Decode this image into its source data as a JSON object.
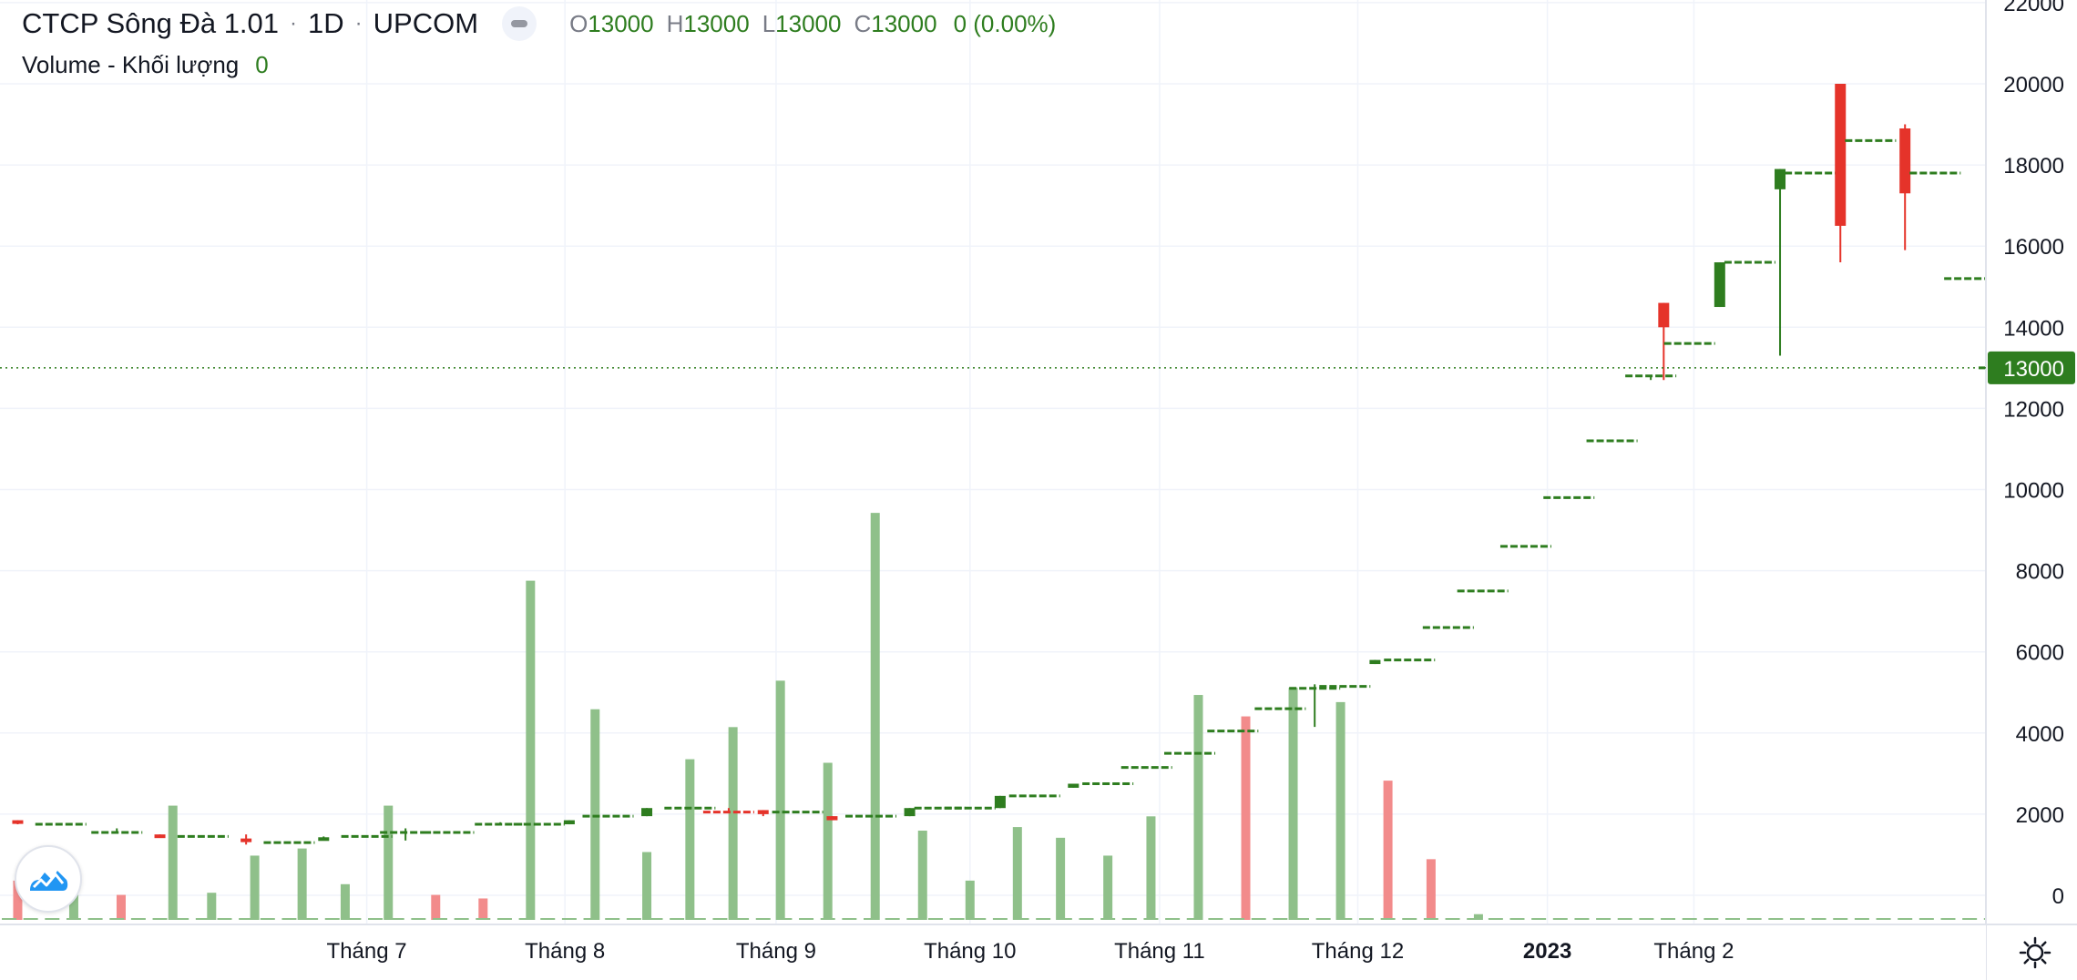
{
  "legend": {
    "symbol": "CTCP Sông Đà 1.01",
    "interval": "1D",
    "exchange": "UPCOM",
    "o_key": "O",
    "o_val": "13000",
    "h_key": "H",
    "h_val": "13000",
    "l_key": "L",
    "l_val": "13000",
    "c_key": "C",
    "c_val": "13000",
    "change": "0 (0.00%)"
  },
  "volume_legend": {
    "label": "Volume - Khối lượng",
    "value": "0"
  },
  "last_price_label": "13000",
  "icons": {
    "logo": "tradingview-logo-icon",
    "settings": "gear-icon",
    "collapse": "collapse-legend-icon"
  },
  "colors": {
    "up": "#2e7d1f",
    "down": "#e5332a",
    "volume_up": "#8fc08a",
    "volume_down": "#f28b8b",
    "grid": "#f0f3fa",
    "axis": "#e0e3eb"
  },
  "chart_data": {
    "type": "candlestick",
    "y_ticks": [
      "0",
      "2000",
      "4000",
      "6000",
      "8000",
      "10000",
      "12000",
      "14000",
      "16000",
      "18000",
      "20000",
      "22000"
    ],
    "x_ticks": [
      {
        "label": "Tháng 7",
        "bold": false,
        "idx": 8.3
      },
      {
        "label": "Tháng 8",
        "bold": false,
        "idx": 12.9
      },
      {
        "label": "Tháng 9",
        "bold": false,
        "idx": 17.8
      },
      {
        "label": "Tháng 10",
        "bold": false,
        "idx": 22.3
      },
      {
        "label": "Tháng 11",
        "bold": false,
        "idx": 26.7
      },
      {
        "label": "Tháng 12",
        "bold": false,
        "idx": 31.3
      },
      {
        "label": "2023",
        "bold": true,
        "idx": 35.7
      },
      {
        "label": "Tháng 2",
        "bold": false,
        "idx": 39.1
      }
    ],
    "ylim": [
      0,
      22000
    ],
    "last_price": 13000,
    "candles": [
      {
        "o": 1850,
        "h": 1850,
        "l": 1750,
        "c": 1780,
        "flat": false
      },
      {
        "o": 1750,
        "h": 1750,
        "l": 1750,
        "c": 1750,
        "flat": true
      },
      {
        "o": 1550,
        "h": 1650,
        "l": 1550,
        "c": 1550,
        "flat": true
      },
      {
        "o": 1500,
        "h": 1500,
        "l": 1450,
        "c": 1460,
        "flat": false
      },
      {
        "o": 1450,
        "h": 1450,
        "l": 1450,
        "c": 1450,
        "flat": true
      },
      {
        "o": 1400,
        "h": 1500,
        "l": 1250,
        "c": 1320,
        "flat": false
      },
      {
        "o": 1300,
        "h": 1300,
        "l": 1300,
        "c": 1300,
        "flat": true
      },
      {
        "o": 1350,
        "h": 1450,
        "l": 1350,
        "c": 1430,
        "flat": false
      },
      {
        "o": 1450,
        "h": 1450,
        "l": 1450,
        "c": 1450,
        "flat": true
      },
      {
        "o": 1500,
        "h": 1650,
        "l": 1350,
        "c": 1550,
        "flat": true
      },
      {
        "o": 1550,
        "h": 1550,
        "l": 1550,
        "c": 1550,
        "flat": true
      },
      {
        "o": 1750,
        "h": 1800,
        "l": 1750,
        "c": 1750,
        "flat": true
      },
      {
        "o": 1750,
        "h": 1750,
        "l": 1750,
        "c": 1750,
        "flat": true
      },
      {
        "o": 1750,
        "h": 1850,
        "l": 1750,
        "c": 1850,
        "flat": false
      },
      {
        "o": 1950,
        "h": 1950,
        "l": 1950,
        "c": 1950,
        "flat": true
      },
      {
        "o": 1950,
        "h": 2150,
        "l": 1950,
        "c": 2150,
        "flat": false
      },
      {
        "o": 2150,
        "h": 2150,
        "l": 2150,
        "c": 2150,
        "flat": true
      },
      {
        "o": 2150,
        "h": 2150,
        "l": 2050,
        "c": 2050,
        "flat": true
      },
      {
        "o": 2100,
        "h": 2100,
        "l": 1950,
        "c": 2000,
        "flat": false
      },
      {
        "o": 2050,
        "h": 2050,
        "l": 2050,
        "c": 2050,
        "flat": true
      },
      {
        "o": 1950,
        "h": 1950,
        "l": 1850,
        "c": 1850,
        "flat": false
      },
      {
        "o": 1950,
        "h": 1950,
        "l": 1950,
        "c": 1950,
        "flat": true
      },
      {
        "o": 1950,
        "h": 2150,
        "l": 1950,
        "c": 2150,
        "flat": false
      },
      {
        "o": 2150,
        "h": 2150,
        "l": 2150,
        "c": 2150,
        "flat": true
      },
      {
        "o": 2150,
        "h": 2150,
        "l": 2150,
        "c": 2150,
        "flat": true
      },
      {
        "o": 2150,
        "h": 2450,
        "l": 2150,
        "c": 2450,
        "flat": false
      },
      {
        "o": 2450,
        "h": 2450,
        "l": 2450,
        "c": 2450,
        "flat": true
      },
      {
        "o": 2650,
        "h": 2750,
        "l": 2650,
        "c": 2750,
        "flat": false
      },
      {
        "o": 2750,
        "h": 2750,
        "l": 2750,
        "c": 2750,
        "flat": true
      },
      {
        "o": 3150,
        "h": 3150,
        "l": 3150,
        "c": 3150,
        "flat": true
      },
      {
        "o": 3500,
        "h": 3500,
        "l": 3500,
        "c": 3500,
        "flat": true
      },
      {
        "o": 4050,
        "h": 4050,
        "l": 4050,
        "c": 4050,
        "flat": true
      },
      {
        "o": 4600,
        "h": 4600,
        "l": 4600,
        "c": 4600,
        "flat": true
      },
      {
        "o": 5100,
        "h": 5200,
        "l": 4150,
        "c": 5100,
        "flat": true
      },
      {
        "o": 5150,
        "h": 5150,
        "l": 5150,
        "c": 5150,
        "flat": true
      },
      {
        "o": 5700,
        "h": 5800,
        "l": 5700,
        "c": 5800,
        "flat": false
      },
      {
        "o": 5800,
        "h": 5800,
        "l": 5800,
        "c": 5800,
        "flat": true
      },
      {
        "o": 6600,
        "h": 6600,
        "l": 6600,
        "c": 6600,
        "flat": true
      },
      {
        "o": 7500,
        "h": 7500,
        "l": 7500,
        "c": 7500,
        "flat": true
      },
      {
        "o": 8600,
        "h": 8600,
        "l": 8600,
        "c": 8600,
        "flat": true
      },
      {
        "o": 9800,
        "h": 9800,
        "l": 9800,
        "c": 9800,
        "flat": true
      },
      {
        "o": 11200,
        "h": 11200,
        "l": 11200,
        "c": 11200,
        "flat": true
      },
      {
        "o": 12700,
        "h": 12800,
        "l": 12700,
        "c": 12800,
        "flat": true
      },
      {
        "o": 14600,
        "h": 14600,
        "l": 12700,
        "c": 14000,
        "flat": false
      },
      {
        "o": 13600,
        "h": 13600,
        "l": 13600,
        "c": 13600,
        "flat": true
      },
      {
        "o": 14500,
        "h": 15600,
        "l": 14500,
        "c": 15600,
        "flat": false
      },
      {
        "o": 15600,
        "h": 15600,
        "l": 15600,
        "c": 15600,
        "flat": true
      },
      {
        "o": 17400,
        "h": 17900,
        "l": 13300,
        "c": 17900,
        "flat": false
      },
      {
        "o": 17800,
        "h": 17800,
        "l": 17800,
        "c": 17800,
        "flat": true
      },
      {
        "o": 20000,
        "h": 20000,
        "l": 15600,
        "c": 16500,
        "flat": false
      },
      {
        "o": 18600,
        "h": 18600,
        "l": 18600,
        "c": 18600,
        "flat": true
      },
      {
        "o": 18900,
        "h": 19000,
        "l": 15900,
        "c": 17300,
        "flat": false
      },
      {
        "o": 17800,
        "h": 17800,
        "l": 17800,
        "c": 17800,
        "flat": true
      },
      {
        "o": 15200,
        "h": 15200,
        "l": 15200,
        "c": 15200,
        "flat": true
      },
      {
        "o": 13000,
        "h": 13000,
        "l": 13000,
        "c": 13000,
        "flat": true
      }
    ],
    "candle_x": [
      0.2,
      1.2,
      2.5,
      3.5,
      4.5,
      5.5,
      6.5,
      7.3,
      8.3,
      9.2,
      10.2,
      11.4,
      12.3,
      13.0,
      13.9,
      14.8,
      15.8,
      16.7,
      17.5,
      18.3,
      19.1,
      20.0,
      20.9,
      21.6,
      22.3,
      23.0,
      23.8,
      24.7,
      25.5,
      26.4,
      27.4,
      28.4,
      29.5,
      30.3,
      31.0,
      31.7,
      32.5,
      33.4,
      34.2,
      35.2,
      36.2,
      37.2,
      38.1,
      38.4,
      39.0,
      39.7,
      40.4,
      41.1,
      41.8,
      42.5,
      43.2,
      44.0,
      44.7,
      45.5,
      46.3
    ],
    "volume_ylim": [
      0,
      5100
    ],
    "volume": [
      {
        "idx": 0.2,
        "v": 550,
        "up": false
      },
      {
        "idx": 1.5,
        "v": 350,
        "up": true
      },
      {
        "idx": 2.6,
        "v": 350,
        "up": false
      },
      {
        "idx": 3.8,
        "v": 1600,
        "up": true
      },
      {
        "idx": 4.7,
        "v": 380,
        "up": true
      },
      {
        "idx": 5.7,
        "v": 900,
        "up": true
      },
      {
        "idx": 6.8,
        "v": 1000,
        "up": true
      },
      {
        "idx": 7.8,
        "v": 500,
        "up": true
      },
      {
        "idx": 8.8,
        "v": 1600,
        "up": true
      },
      {
        "idx": 9.9,
        "v": 350,
        "up": false
      },
      {
        "idx": 11.0,
        "v": 300,
        "up": false
      },
      {
        "idx": 12.1,
        "v": 4750,
        "up": true
      },
      {
        "idx": 13.6,
        "v": 2950,
        "up": true
      },
      {
        "idx": 14.8,
        "v": 950,
        "up": true
      },
      {
        "idx": 15.8,
        "v": 2250,
        "up": true
      },
      {
        "idx": 16.8,
        "v": 2700,
        "up": true
      },
      {
        "idx": 17.9,
        "v": 3350,
        "up": true
      },
      {
        "idx": 19.0,
        "v": 2200,
        "up": true
      },
      {
        "idx": 20.1,
        "v": 5700,
        "up": true
      },
      {
        "idx": 21.2,
        "v": 1250,
        "up": true
      },
      {
        "idx": 22.3,
        "v": 550,
        "up": true
      },
      {
        "idx": 23.4,
        "v": 1300,
        "up": true
      },
      {
        "idx": 24.4,
        "v": 1150,
        "up": true
      },
      {
        "idx": 25.5,
        "v": 900,
        "up": true
      },
      {
        "idx": 26.5,
        "v": 1450,
        "up": true
      },
      {
        "idx": 27.6,
        "v": 3150,
        "up": true
      },
      {
        "idx": 28.7,
        "v": 2850,
        "up": false
      },
      {
        "idx": 29.8,
        "v": 3250,
        "up": true
      },
      {
        "idx": 30.9,
        "v": 3050,
        "up": true
      },
      {
        "idx": 32.0,
        "v": 1950,
        "up": false
      },
      {
        "idx": 33.0,
        "v": 850,
        "up": false
      },
      {
        "idx": 34.1,
        "v": 80,
        "up": true
      }
    ]
  }
}
